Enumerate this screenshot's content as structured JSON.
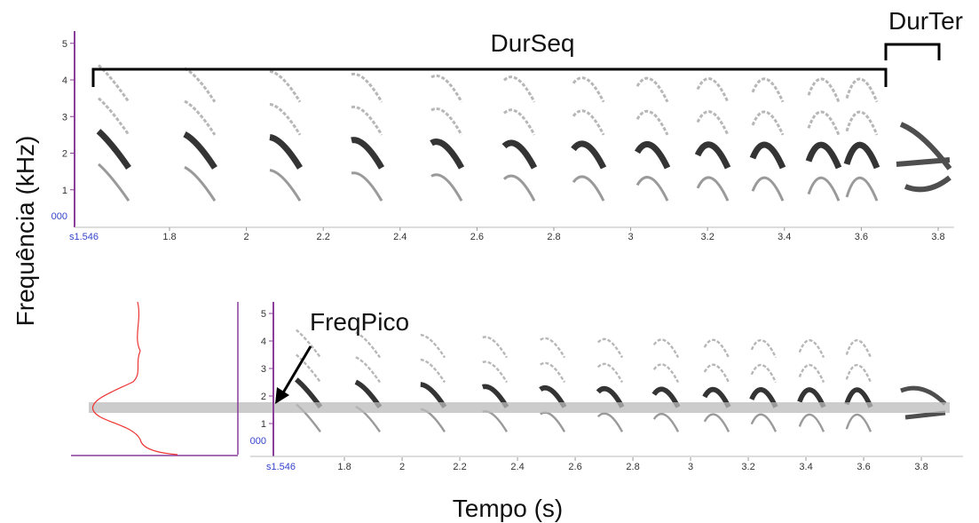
{
  "y_label": "Frequência (kHz)",
  "x_label": "Tempo (s)",
  "annotations": {
    "sequence": "DurSeq",
    "terminal": "DurTer",
    "peak": "FreqPico"
  },
  "top_panel": {
    "y_ticks": [
      1,
      2,
      3,
      4,
      5
    ],
    "y_origin": "000",
    "x_start": "s1.546",
    "x_ticks": [
      1.8,
      2,
      2.2,
      2.4,
      2.6,
      2.8,
      3,
      3.2,
      3.4,
      3.6,
      3.8
    ]
  },
  "bottom_panel": {
    "y_ticks": [
      1,
      2,
      3,
      4,
      5
    ],
    "y_origin": "000",
    "x_start": "s1.546",
    "x_ticks": [
      1.8,
      2,
      2.2,
      2.4,
      2.6,
      2.8,
      3,
      3.2,
      3.4,
      3.6,
      3.8
    ]
  }
}
